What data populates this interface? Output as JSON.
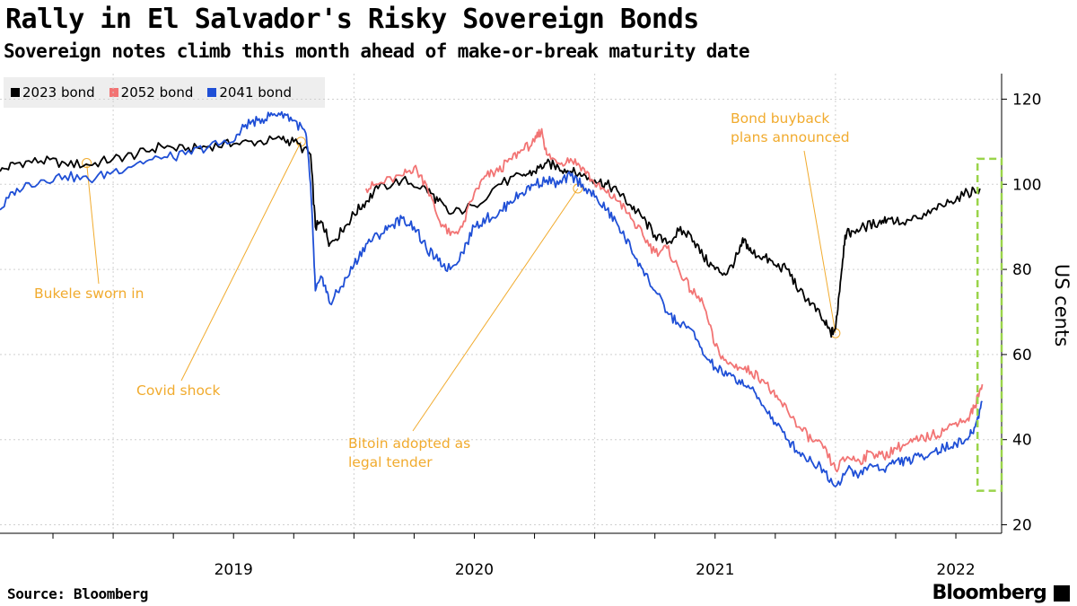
{
  "title": "Rally in El Salvador's Risky Sovereign Bonds",
  "subtitle": "Sovereign notes climb this month ahead of make-or-break maturity date",
  "legend": [
    {
      "label": "2023 bond",
      "color": "#000000"
    },
    {
      "label": "2052 bond",
      "color": "#f27474"
    },
    {
      "label": "2041 bond",
      "color": "#1f4fd6"
    }
  ],
  "source": "Source: Bloomberg",
  "brand": "Bloomberg",
  "chart_data": {
    "type": "line",
    "ylabel": "US cents",
    "ylim": [
      18,
      126
    ],
    "yticks": [
      20,
      40,
      60,
      80,
      100,
      120
    ],
    "xlim": [
      2018.53,
      2022.69
    ],
    "xticks": [
      {
        "label": "2019",
        "x": 2019.0
      },
      {
        "label": "2020",
        "x": 2020.0
      },
      {
        "label": "2021",
        "x": 2021.0
      },
      {
        "label": "2022",
        "x": 2022.0
      }
    ],
    "series": [
      {
        "name": "2023 bond",
        "color": "#000000",
        "points": [
          [
            2018.53,
            103
          ],
          [
            2018.6,
            105
          ],
          [
            2018.7,
            105.5
          ],
          [
            2018.8,
            105
          ],
          [
            2018.9,
            104.5
          ],
          [
            2019.0,
            106
          ],
          [
            2019.1,
            107
          ],
          [
            2019.2,
            109
          ],
          [
            2019.3,
            108
          ],
          [
            2019.4,
            109
          ],
          [
            2019.5,
            109.5
          ],
          [
            2019.6,
            110
          ],
          [
            2019.7,
            110.5
          ],
          [
            2019.75,
            110
          ],
          [
            2019.82,
            107
          ],
          [
            2019.84,
            90
          ],
          [
            2019.87,
            91
          ],
          [
            2019.9,
            86
          ],
          [
            2019.95,
            89
          ],
          [
            2020.0,
            93
          ],
          [
            2020.05,
            96
          ],
          [
            2020.1,
            99
          ],
          [
            2020.2,
            101
          ],
          [
            2020.3,
            99
          ],
          [
            2020.35,
            96
          ],
          [
            2020.4,
            93
          ],
          [
            2020.5,
            95
          ],
          [
            2020.6,
            100
          ],
          [
            2020.7,
            102
          ],
          [
            2020.75,
            103
          ],
          [
            2020.8,
            105
          ],
          [
            2020.85,
            104
          ],
          [
            2020.9,
            103
          ],
          [
            2020.95,
            102
          ],
          [
            2021.0,
            101
          ],
          [
            2021.05,
            100
          ],
          [
            2021.1,
            98
          ],
          [
            2021.15,
            95
          ],
          [
            2021.2,
            92
          ],
          [
            2021.25,
            88
          ],
          [
            2021.3,
            86
          ],
          [
            2021.35,
            89
          ],
          [
            2021.4,
            88
          ],
          [
            2021.45,
            83
          ],
          [
            2021.5,
            80
          ],
          [
            2021.55,
            79
          ],
          [
            2021.6,
            84
          ],
          [
            2021.62,
            87
          ],
          [
            2021.65,
            84
          ],
          [
            2021.7,
            83
          ],
          [
            2021.75,
            81
          ],
          [
            2021.8,
            80
          ],
          [
            2021.85,
            75
          ],
          [
            2021.9,
            72
          ],
          [
            2021.95,
            68
          ],
          [
            2021.98,
            65
          ],
          [
            2022.0,
            66
          ],
          [
            2022.02,
            77
          ],
          [
            2022.04,
            88
          ],
          [
            2022.07,
            89
          ],
          [
            2022.12,
            90
          ],
          [
            2022.18,
            91
          ],
          [
            2022.22,
            92
          ],
          [
            2022.28,
            91
          ],
          [
            2022.35,
            92
          ],
          [
            2022.42,
            94
          ],
          [
            2022.48,
            96
          ],
          [
            2022.55,
            98
          ],
          [
            2022.6,
            99
          ]
        ]
      },
      {
        "name": "2052 bond",
        "color": "#f27474",
        "points": [
          [
            2020.05,
            99
          ],
          [
            2020.1,
            100
          ],
          [
            2020.2,
            102
          ],
          [
            2020.25,
            104
          ],
          [
            2020.3,
            100
          ],
          [
            2020.35,
            92
          ],
          [
            2020.4,
            88
          ],
          [
            2020.45,
            90
          ],
          [
            2020.5,
            98
          ],
          [
            2020.55,
            102
          ],
          [
            2020.6,
            103
          ],
          [
            2020.65,
            106
          ],
          [
            2020.7,
            108
          ],
          [
            2020.75,
            110
          ],
          [
            2020.78,
            113
          ],
          [
            2020.8,
            107
          ],
          [
            2020.85,
            105
          ],
          [
            2020.9,
            106
          ],
          [
            2020.95,
            104
          ],
          [
            2021.0,
            100
          ],
          [
            2021.05,
            98
          ],
          [
            2021.1,
            96
          ],
          [
            2021.15,
            92
          ],
          [
            2021.2,
            88
          ],
          [
            2021.25,
            84
          ],
          [
            2021.3,
            85
          ],
          [
            2021.35,
            80
          ],
          [
            2021.4,
            75
          ],
          [
            2021.45,
            72
          ],
          [
            2021.5,
            62
          ],
          [
            2021.55,
            58
          ],
          [
            2021.6,
            57
          ],
          [
            2021.65,
            56
          ],
          [
            2021.7,
            54
          ],
          [
            2021.75,
            50
          ],
          [
            2021.8,
            47
          ],
          [
            2021.85,
            43
          ],
          [
            2021.9,
            40
          ],
          [
            2021.95,
            38
          ],
          [
            2022.0,
            33
          ],
          [
            2022.05,
            36
          ],
          [
            2022.1,
            35
          ],
          [
            2022.15,
            37
          ],
          [
            2022.2,
            36
          ],
          [
            2022.25,
            38
          ],
          [
            2022.3,
            39
          ],
          [
            2022.35,
            40
          ],
          [
            2022.4,
            41
          ],
          [
            2022.45,
            42
          ],
          [
            2022.5,
            44
          ],
          [
            2022.55,
            45
          ],
          [
            2022.58,
            48
          ],
          [
            2022.61,
            53
          ]
        ]
      },
      {
        "name": "2041 bond",
        "color": "#1f4fd6",
        "points": [
          [
            2018.53,
            94
          ],
          [
            2018.6,
            99
          ],
          [
            2018.7,
            101
          ],
          [
            2018.8,
            102
          ],
          [
            2018.9,
            101
          ],
          [
            2019.0,
            103
          ],
          [
            2019.1,
            105
          ],
          [
            2019.2,
            106
          ],
          [
            2019.3,
            107
          ],
          [
            2019.4,
            109
          ],
          [
            2019.5,
            110
          ],
          [
            2019.55,
            114
          ],
          [
            2019.6,
            115
          ],
          [
            2019.65,
            116
          ],
          [
            2019.7,
            117
          ],
          [
            2019.75,
            115
          ],
          [
            2019.8,
            112
          ],
          [
            2019.82,
            100
          ],
          [
            2019.84,
            75
          ],
          [
            2019.87,
            78
          ],
          [
            2019.9,
            72
          ],
          [
            2019.95,
            76
          ],
          [
            2020.0,
            81
          ],
          [
            2020.05,
            86
          ],
          [
            2020.1,
            88
          ],
          [
            2020.15,
            90
          ],
          [
            2020.2,
            92
          ],
          [
            2020.25,
            90
          ],
          [
            2020.3,
            85
          ],
          [
            2020.35,
            82
          ],
          [
            2020.4,
            80
          ],
          [
            2020.45,
            84
          ],
          [
            2020.5,
            90
          ],
          [
            2020.55,
            92
          ],
          [
            2020.6,
            93
          ],
          [
            2020.65,
            96
          ],
          [
            2020.7,
            98
          ],
          [
            2020.75,
            100
          ],
          [
            2020.8,
            101
          ],
          [
            2020.85,
            100
          ],
          [
            2020.9,
            102
          ],
          [
            2020.95,
            100
          ],
          [
            2021.0,
            97
          ],
          [
            2021.05,
            94
          ],
          [
            2021.1,
            90
          ],
          [
            2021.15,
            85
          ],
          [
            2021.2,
            80
          ],
          [
            2021.25,
            75
          ],
          [
            2021.3,
            70
          ],
          [
            2021.35,
            67
          ],
          [
            2021.4,
            66
          ],
          [
            2021.45,
            60
          ],
          [
            2021.5,
            57
          ],
          [
            2021.55,
            55
          ],
          [
            2021.6,
            54
          ],
          [
            2021.65,
            52
          ],
          [
            2021.7,
            48
          ],
          [
            2021.75,
            44
          ],
          [
            2021.8,
            40
          ],
          [
            2021.85,
            37
          ],
          [
            2021.9,
            35
          ],
          [
            2021.95,
            33
          ],
          [
            2022.0,
            29
          ],
          [
            2022.05,
            33
          ],
          [
            2022.1,
            32
          ],
          [
            2022.15,
            34
          ],
          [
            2022.2,
            33
          ],
          [
            2022.25,
            35
          ],
          [
            2022.3,
            35
          ],
          [
            2022.35,
            36
          ],
          [
            2022.4,
            37
          ],
          [
            2022.45,
            38
          ],
          [
            2022.5,
            39
          ],
          [
            2022.55,
            40
          ],
          [
            2022.58,
            43
          ],
          [
            2022.61,
            49
          ]
        ]
      }
    ],
    "annotations": [
      {
        "id": "bukele",
        "text": [
          "Bukele sworn in"
        ],
        "x": 2018.89,
        "y": 105
      },
      {
        "id": "covid",
        "text": [
          "Covid shock"
        ],
        "x": 2019.78,
        "y": 110
      },
      {
        "id": "bitcoin",
        "text": [
          "Bitoin adopted as",
          "legal tender"
        ],
        "x": 2020.93,
        "y": 99
      },
      {
        "id": "buyback",
        "text": [
          "Bond buyback",
          "plans announced"
        ],
        "x": 2022.0,
        "y": 65
      }
    ]
  }
}
